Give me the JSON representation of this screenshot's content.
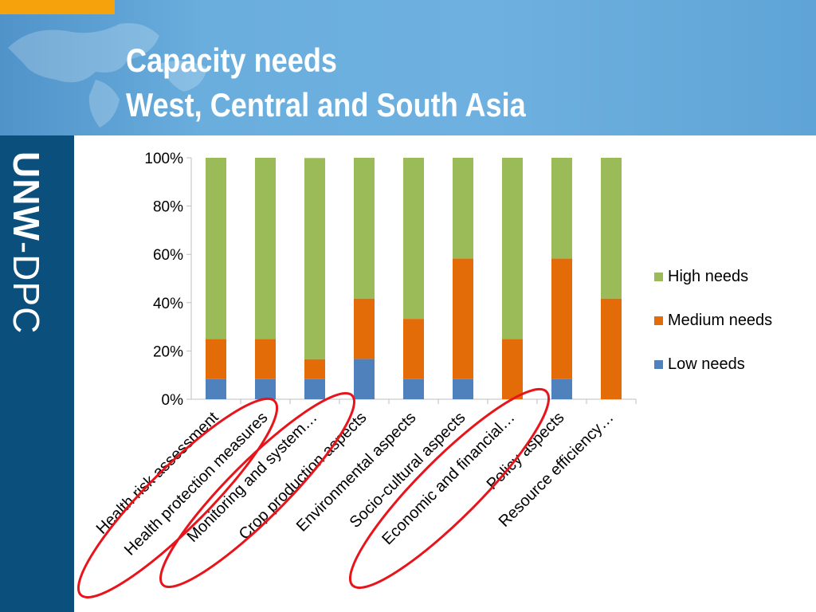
{
  "slide": {
    "title_line1": "Capacity needs",
    "title_line2": "West, Central and South Asia",
    "logo_bold": "UNW",
    "logo_light": "-DPC"
  },
  "colors": {
    "header": "#6aaede",
    "sidebar": "#0b4f7c",
    "accent_tab": "#f5a20d",
    "highlight_ellipse": "#e8141c"
  },
  "chart_data": {
    "type": "bar",
    "stacked": true,
    "percent_stacked": true,
    "categories": [
      "Health risk assessment",
      "Health protection measures",
      "Monitoring and system…",
      "Crop production aspects",
      "Environmental aspects",
      "Socio-cultural aspects",
      "Economic and financial…",
      "Policy aspects",
      "Resource efficiency…"
    ],
    "series": [
      {
        "name": "Low needs",
        "color": "#4f81bd",
        "values": [
          8.3,
          8.3,
          8.3,
          16.7,
          8.3,
          8.3,
          0,
          8.3,
          0
        ]
      },
      {
        "name": "Medium needs",
        "color": "#e36c09",
        "values": [
          16.7,
          16.7,
          8.3,
          25,
          25,
          50,
          25,
          50,
          41.7
        ]
      },
      {
        "name": "High needs",
        "color": "#9bbb59",
        "values": [
          75,
          75,
          83.3,
          58.3,
          66.7,
          41.7,
          75,
          41.7,
          58.3
        ]
      }
    ],
    "ylim": [
      0,
      100
    ],
    "yticks": [
      "0%",
      "20%",
      "40%",
      "60%",
      "80%",
      "100%"
    ],
    "legend_position": "right",
    "highlighted_categories": [
      "Health risk assessment",
      "Health protection measures",
      "Monitoring and system…",
      "Economic and financial…"
    ]
  }
}
